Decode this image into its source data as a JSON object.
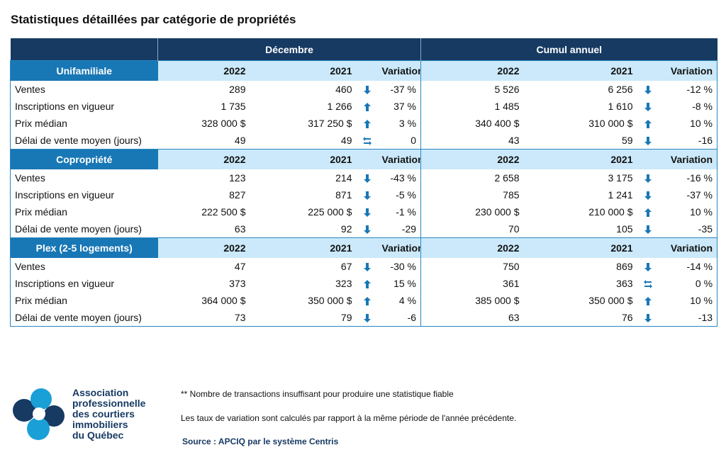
{
  "title": "Statistiques détaillées par catégorie de propriétés",
  "table": {
    "groups": [
      "Décembre",
      "Cumul annuel"
    ],
    "sections": [
      {
        "name": "Unifamiliale",
        "columns": [
          "2022",
          "2021",
          "Variation",
          "2022",
          "2021",
          "Variation"
        ],
        "rows": [
          [
            "Ventes",
            "289",
            "460",
            "-37 %",
            "5 526",
            "6 256",
            "-12 %"
          ],
          [
            "Inscriptions en vigueur",
            "1 735",
            "1 266",
            "37 %",
            "1 485",
            "1 610",
            "-8 %"
          ],
          [
            "Prix médian",
            "328 000 $",
            "317 250 $",
            "3 %",
            "340 400 $",
            "310 000 $",
            "10 %"
          ],
          [
            "Délai de vente moyen (jours)",
            "49",
            "49",
            "0",
            "43",
            "59",
            "-16"
          ]
        ]
      },
      {
        "name": "Copropriété",
        "columns": [
          "2022",
          "2021",
          "Variation",
          "2022",
          "2021",
          "Variation"
        ],
        "rows": [
          [
            "Ventes",
            "123",
            "214",
            "-43 %",
            "2 658",
            "3 175",
            "-16 %"
          ],
          [
            "Inscriptions en vigueur",
            "827",
            "871",
            "-5 %",
            "785",
            "1 241",
            "-37 %"
          ],
          [
            "Prix médian",
            "222 500 $",
            "225 000 $",
            "-1 %",
            "230 000 $",
            "210 000 $",
            "10 %"
          ],
          [
            "Délai de vente moyen (jours)",
            "63",
            "92",
            "-29",
            "70",
            "105",
            "-35"
          ]
        ]
      },
      {
        "name": "Plex (2-5 logements)",
        "columns": [
          "2022",
          "2021",
          "Variation",
          "2022",
          "2021",
          "Variation"
        ],
        "rows": [
          [
            "Ventes",
            "47",
            "67",
            "-30 %",
            "750",
            "869",
            "-14 %"
          ],
          [
            "Inscriptions en vigueur",
            "373",
            "323",
            "15 %",
            "361",
            "363",
            "0 %"
          ],
          [
            "Prix médian",
            "364 000 $",
            "350 000 $",
            "4 %",
            "385 000 $",
            "350 000 $",
            "10 %"
          ],
          [
            "Délai de vente moyen (jours)",
            "73",
            "79",
            "-6",
            "63",
            "76",
            "-13"
          ]
        ]
      }
    ]
  },
  "footer": {
    "organization": [
      "Association",
      "professionnelle",
      "des courtiers",
      "immobiliers",
      "du Québec"
    ],
    "notes": [
      "** Nombre de transactions insuffisant pour produire une statistique fiable",
      "Les taux de variation sont calculés par rapport à la même période de l'année précédente."
    ],
    "source": "Source : APCIQ par le système Centris"
  }
}
